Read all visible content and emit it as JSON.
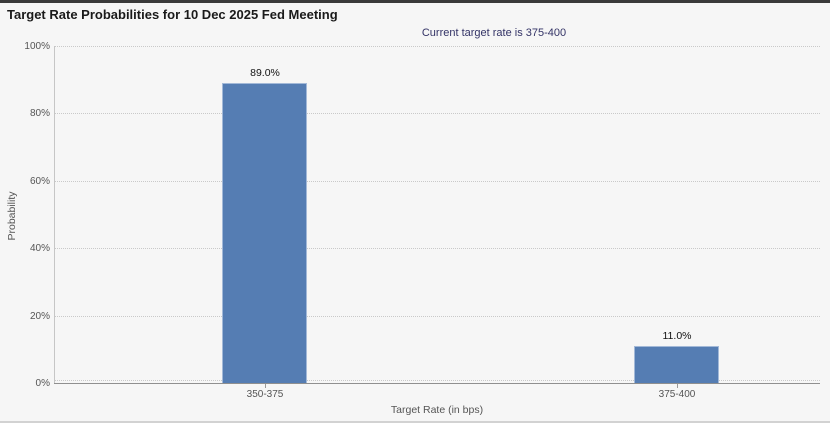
{
  "header": {
    "title": "Target Rate Probabilities for 10 Dec 2025 Fed Meeting",
    "subtitle": "Current target rate is 375-400"
  },
  "colors": {
    "bar_fill": "#557db3",
    "bar_border": "#a3b9d8",
    "subtitle_text": "#333366",
    "background": "#f6f6f6",
    "grid": "#c9c9c9",
    "axis_text": "#555555"
  },
  "chart_data": {
    "type": "bar",
    "title": "Target Rate Probabilities for 10 Dec 2025 Fed Meeting",
    "subtitle": "Current target rate is 375-400",
    "categories": [
      "350-375",
      "375-400"
    ],
    "values": [
      89.0,
      11.0
    ],
    "value_labels": [
      "89.0%",
      "11.0%"
    ],
    "xlabel": "Target Rate (in bps)",
    "ylabel": "Probability",
    "ylim": [
      0,
      100
    ],
    "ytick_step": 20,
    "ytick_labels": [
      "0%",
      "20%",
      "40%",
      "60%",
      "80%",
      "100%"
    ],
    "grid": "horizontal-dotted",
    "legend_position": "none"
  }
}
